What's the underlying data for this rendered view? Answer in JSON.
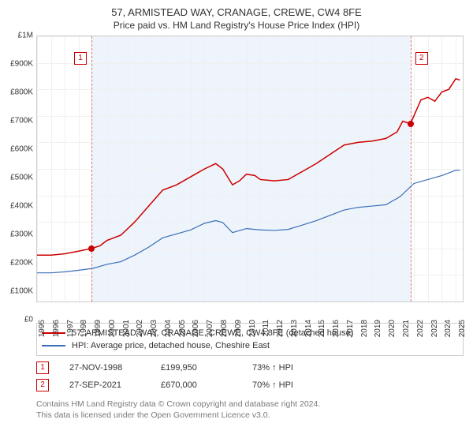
{
  "title": "57, ARMISTEAD WAY, CRANAGE, CREWE, CW4 8FE",
  "subtitle": "Price paid vs. HM Land Registry's House Price Index (HPI)",
  "chart": {
    "type": "line",
    "background_color": "#ffffff",
    "grid_color": "#f0f0f0",
    "border_color": "#cccccc",
    "shade_color": "#eef4fb",
    "xlim": [
      1995,
      2025.5
    ],
    "ylim": [
      0,
      1000000
    ],
    "xticks": [
      1995,
      1996,
      1997,
      1998,
      1999,
      2000,
      2001,
      2002,
      2003,
      2004,
      2005,
      2006,
      2007,
      2008,
      2009,
      2010,
      2011,
      2012,
      2013,
      2014,
      2015,
      2016,
      2017,
      2018,
      2019,
      2020,
      2021,
      2022,
      2023,
      2024,
      2025
    ],
    "yticks": [
      {
        "v": 0,
        "label": "£0"
      },
      {
        "v": 100000,
        "label": "£100K"
      },
      {
        "v": 200000,
        "label": "£200K"
      },
      {
        "v": 300000,
        "label": "£300K"
      },
      {
        "v": 400000,
        "label": "£400K"
      },
      {
        "v": 500000,
        "label": "£500K"
      },
      {
        "v": 600000,
        "label": "£600K"
      },
      {
        "v": 700000,
        "label": "£700K"
      },
      {
        "v": 800000,
        "label": "£800K"
      },
      {
        "v": 900000,
        "label": "£900K"
      },
      {
        "v": 1000000,
        "label": "£1M"
      }
    ],
    "title_fontsize": 13,
    "subtitle_fontsize": 12,
    "tick_fontsize": 10,
    "shaded_range": [
      1998.9,
      2021.75
    ],
    "tx_markers": [
      {
        "idx": "1",
        "x": 1998.9,
        "y": 199950,
        "label_side": "left"
      },
      {
        "idx": "2",
        "x": 2021.75,
        "y": 670000,
        "label_side": "right"
      }
    ],
    "series": [
      {
        "name": "57, ARMISTEAD WAY, CRANAGE, CREWE, CW4 8FE (detached house)",
        "color": "#cc0000",
        "line_width": 1.5,
        "points": [
          [
            1995,
            175000
          ],
          [
            1996,
            175000
          ],
          [
            1997,
            180000
          ],
          [
            1998,
            190000
          ],
          [
            1998.9,
            199950
          ],
          [
            1999.5,
            210000
          ],
          [
            2000,
            230000
          ],
          [
            2001,
            250000
          ],
          [
            2002,
            300000
          ],
          [
            2003,
            360000
          ],
          [
            2004,
            420000
          ],
          [
            2005,
            440000
          ],
          [
            2006,
            470000
          ],
          [
            2007,
            500000
          ],
          [
            2007.8,
            520000
          ],
          [
            2008.3,
            500000
          ],
          [
            2009,
            440000
          ],
          [
            2009.5,
            455000
          ],
          [
            2010,
            480000
          ],
          [
            2010.6,
            475000
          ],
          [
            2011,
            460000
          ],
          [
            2012,
            455000
          ],
          [
            2013,
            460000
          ],
          [
            2014,
            490000
          ],
          [
            2015,
            520000
          ],
          [
            2016,
            555000
          ],
          [
            2017,
            590000
          ],
          [
            2018,
            600000
          ],
          [
            2019,
            605000
          ],
          [
            2020,
            615000
          ],
          [
            2020.8,
            640000
          ],
          [
            2021.2,
            680000
          ],
          [
            2021.75,
            670000
          ],
          [
            2022,
            700000
          ],
          [
            2022.5,
            760000
          ],
          [
            2023,
            770000
          ],
          [
            2023.5,
            755000
          ],
          [
            2024,
            790000
          ],
          [
            2024.5,
            800000
          ],
          [
            2025,
            840000
          ],
          [
            2025.3,
            835000
          ]
        ]
      },
      {
        "name": "HPI: Average price, detached house, Cheshire East",
        "color": "#3a6fb7",
        "line_width": 1.2,
        "points": [
          [
            1995,
            108000
          ],
          [
            1996,
            108000
          ],
          [
            1997,
            112000
          ],
          [
            1998,
            118000
          ],
          [
            1999,
            125000
          ],
          [
            2000,
            140000
          ],
          [
            2001,
            150000
          ],
          [
            2002,
            175000
          ],
          [
            2003,
            205000
          ],
          [
            2004,
            240000
          ],
          [
            2005,
            255000
          ],
          [
            2006,
            270000
          ],
          [
            2007,
            295000
          ],
          [
            2007.8,
            305000
          ],
          [
            2008.3,
            298000
          ],
          [
            2009,
            260000
          ],
          [
            2010,
            275000
          ],
          [
            2011,
            270000
          ],
          [
            2012,
            268000
          ],
          [
            2013,
            272000
          ],
          [
            2014,
            288000
          ],
          [
            2015,
            305000
          ],
          [
            2016,
            325000
          ],
          [
            2017,
            345000
          ],
          [
            2018,
            355000
          ],
          [
            2019,
            360000
          ],
          [
            2020,
            365000
          ],
          [
            2021,
            395000
          ],
          [
            2022,
            445000
          ],
          [
            2023,
            460000
          ],
          [
            2024,
            475000
          ],
          [
            2025,
            495000
          ],
          [
            2025.3,
            495000
          ]
        ]
      }
    ]
  },
  "legend": {
    "items": [
      {
        "color": "#cc0000",
        "label": "57, ARMISTEAD WAY, CRANAGE, CREWE, CW4 8FE (detached house)"
      },
      {
        "color": "#3a6fb7",
        "label": "HPI: Average price, detached house, Cheshire East"
      }
    ]
  },
  "transactions": [
    {
      "idx": "1",
      "date": "27-NOV-1998",
      "price": "£199,950",
      "vs_hpi": "73% ↑ HPI"
    },
    {
      "idx": "2",
      "date": "27-SEP-2021",
      "price": "£670,000",
      "vs_hpi": "70% ↑ HPI"
    }
  ],
  "footer_line1": "Contains HM Land Registry data © Crown copyright and database right 2024.",
  "footer_line2": "This data is licensed under the Open Government Licence v3.0."
}
